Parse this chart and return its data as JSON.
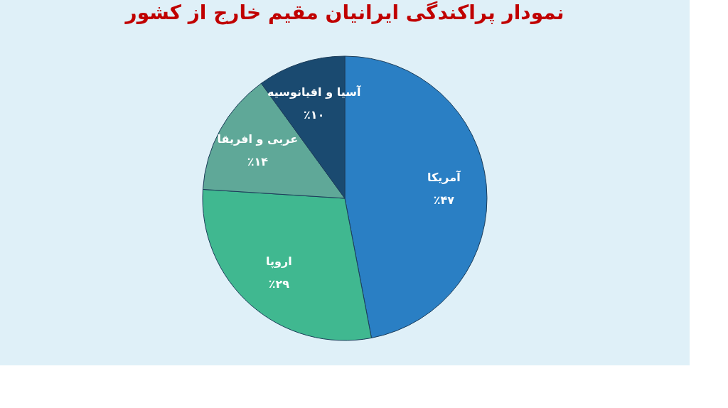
{
  "chart_data": {
    "type": "pie",
    "title": "نمودار پراکندگی ایرانیان مقیم خارج از کشور",
    "categories": [
      "آمریکا",
      "اروپا",
      "عربی و افریقا",
      "آسیا و اقیانوسیه"
    ],
    "values": [
      47,
      29,
      14,
      10
    ],
    "colors": [
      "#2a7fc4",
      "#40b890",
      "#5fa898",
      "#1a4a70"
    ],
    "value_labels": [
      "٪۴۷",
      "٪۲۹",
      "٪۱۴",
      "٪۱۰"
    ],
    "legend": false
  }
}
